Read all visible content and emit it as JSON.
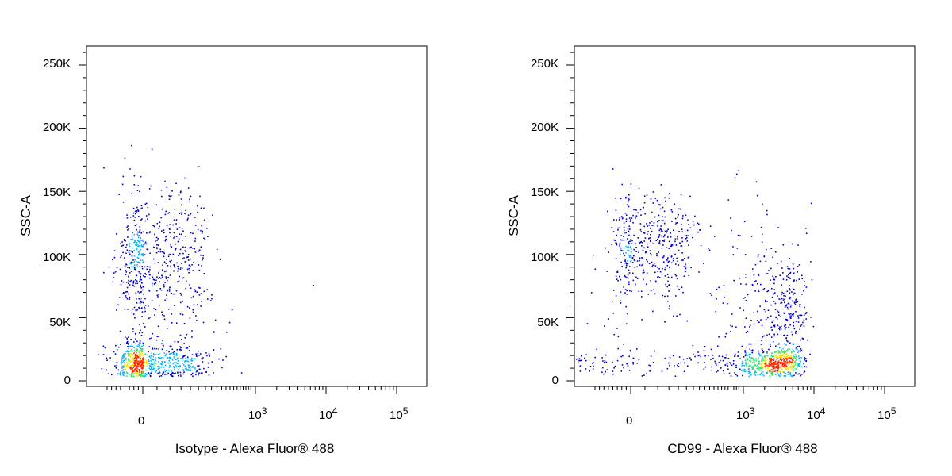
{
  "chart_data": [
    {
      "type": "scatter",
      "xlabel": "Isotype - Alexa Fluor® 488",
      "ylabel": "SSC-A",
      "x_scale": "biexponential",
      "y_ticks": [
        "0",
        "50K",
        "100K",
        "150K",
        "200K",
        "250K"
      ],
      "y_tick_values": [
        0,
        50000,
        100000,
        150000,
        200000,
        250000
      ],
      "x_ticks": [
        {
          "base": "0",
          "exp": ""
        },
        {
          "base": "10",
          "exp": "3"
        },
        {
          "base": "10",
          "exp": "4"
        },
        {
          "base": "10",
          "exp": "5"
        }
      ],
      "ylim": [
        0,
        262144
      ],
      "populations": [
        {
          "x_center": 0,
          "x_spread": 150,
          "y_center": 15000,
          "y_spread": 8000,
          "count": 700
        },
        {
          "x_center": 30,
          "x_spread": 150,
          "y_center": 95000,
          "y_spread": 28000,
          "count": 650
        }
      ],
      "outliers": [
        {
          "x": 250,
          "y": 170000
        },
        {
          "x": 500,
          "y": 39000
        },
        {
          "x": 6500,
          "y": 76000
        }
      ],
      "density_colors": [
        "#0000c8",
        "#00b4ff",
        "#2ee36e",
        "#ffe400",
        "#ff2a00"
      ],
      "grid": false
    },
    {
      "type": "scatter",
      "xlabel": "CD99 - Alexa Fluor® 488",
      "ylabel": "SSC-A",
      "x_scale": "biexponential",
      "y_ticks": [
        "0",
        "50K",
        "100K",
        "150K",
        "200K",
        "250K"
      ],
      "y_tick_values": [
        0,
        50000,
        100000,
        150000,
        200000,
        250000
      ],
      "x_ticks": [
        {
          "base": "0",
          "exp": ""
        },
        {
          "base": "10",
          "exp": "3"
        },
        {
          "base": "10",
          "exp": "4"
        },
        {
          "base": "10",
          "exp": "5"
        }
      ],
      "ylim": [
        0,
        262144
      ],
      "populations": [
        {
          "x_center": 60,
          "x_spread": 120,
          "y_center": 105000,
          "y_spread": 22000,
          "count": 450
        },
        {
          "x_center": 1800,
          "x_spread": 2200,
          "y_center": 15000,
          "y_spread": 6000,
          "count": 750
        },
        {
          "x_center": 4000,
          "x_spread": 1800,
          "y_center": 55000,
          "y_spread": 25000,
          "count": 300
        },
        {
          "x_center": 900,
          "x_spread": 800,
          "y_center": 70000,
          "y_spread": 45000,
          "count": 120
        }
      ],
      "outliers": [
        {
          "x": -150,
          "y": 120000
        },
        {
          "x": -200,
          "y": 54000
        },
        {
          "x": 1500,
          "y": 158000
        },
        {
          "x": 9000,
          "y": 141000
        }
      ],
      "density_colors": [
        "#0000c8",
        "#00b4ff",
        "#2ee36e",
        "#ffe400",
        "#ff2a00"
      ],
      "grid": false
    }
  ]
}
